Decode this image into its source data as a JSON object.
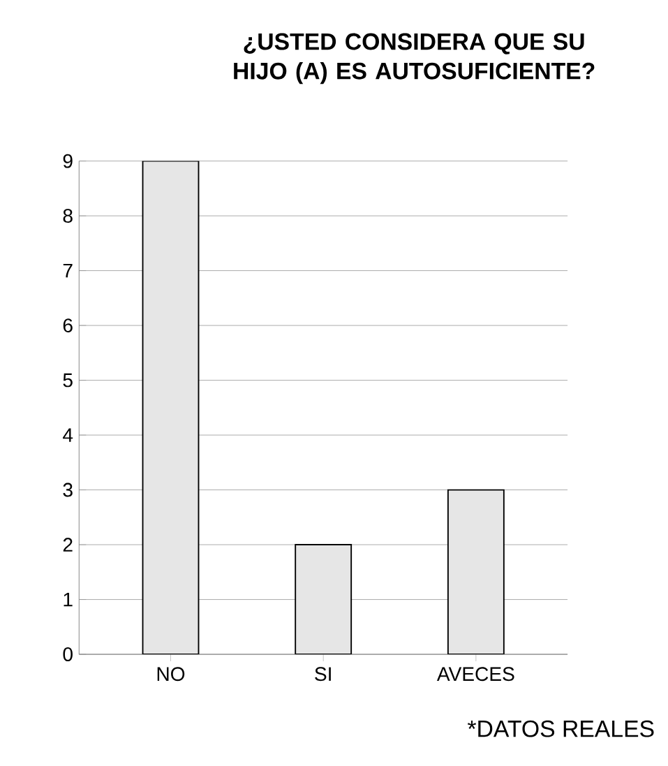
{
  "chart_data": {
    "type": "bar",
    "title": "¿USTED CONSIDERA QUE SU HIJO (A) ES AUTOSUFICIENTE?",
    "categories": [
      "NO",
      "SI",
      "AVECES"
    ],
    "values": [
      9,
      2,
      3
    ],
    "color": "#e6e6e6",
    "ylim": [
      0,
      9
    ],
    "yticks": [
      0,
      1,
      2,
      3,
      4,
      5,
      6,
      7,
      8,
      9
    ],
    "grid": "y",
    "annotations": [
      "*DATOS REALES"
    ]
  }
}
